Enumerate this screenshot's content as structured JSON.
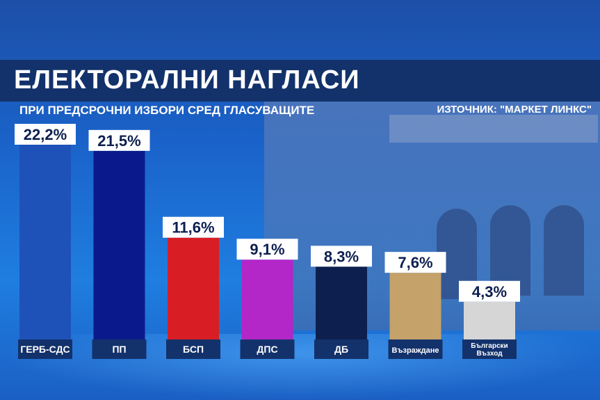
{
  "header": {
    "title": "ЕЛЕКТОРАЛНИ НАГЛАСИ",
    "subtitle": "ПРИ ПРЕДСРОЧНИ ИЗБОРИ СРЕД ГЛАСУВАЩИТЕ",
    "source": "ИЗТОЧНИК: \"МАРКЕТ ЛИНКС\""
  },
  "chart_data": {
    "type": "bar",
    "categories": [
      "ГЕРБ-СДС",
      "ПП",
      "БСП",
      "ДПС",
      "ДБ",
      "Възраждане",
      "Български Възход"
    ],
    "values": [
      22.2,
      21.5,
      11.6,
      9.1,
      8.3,
      7.6,
      4.3
    ],
    "value_labels": [
      "22,2%",
      "21,5%",
      "11,6%",
      "9,1%",
      "8,3%",
      "7,6%",
      "4,3%"
    ],
    "colors": [
      "#1e52b8",
      "#0a1a8c",
      "#d81e24",
      "#b326c8",
      "#0d1f4f",
      "#c4a26a",
      "#d6d6d6"
    ],
    "ylim": [
      0,
      22.2
    ],
    "grid": false,
    "legend": "none"
  }
}
